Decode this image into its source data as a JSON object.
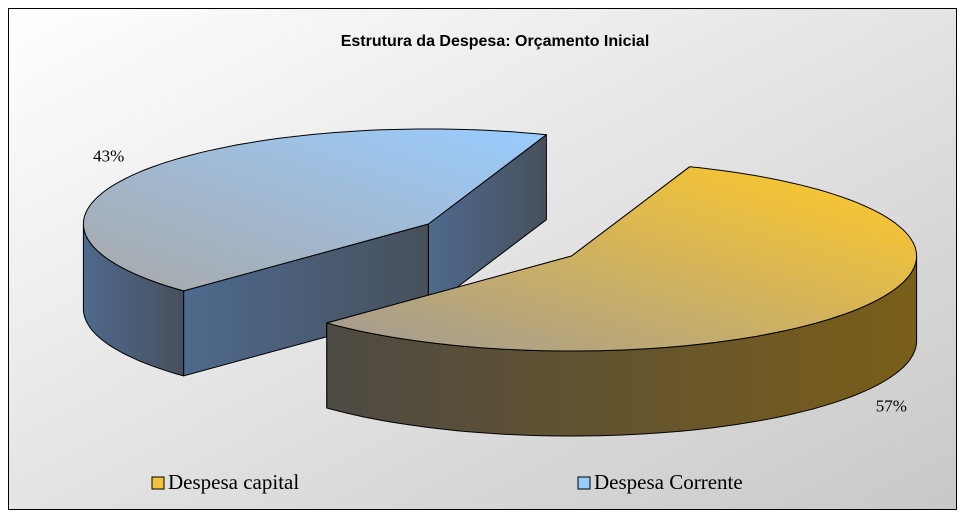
{
  "chart_data": {
    "type": "pie",
    "title": "Estrutura da Despesa: Orçamento Inicial",
    "categories": [
      "Despesa capital",
      "Despesa Corrente"
    ],
    "values": [
      57,
      43
    ],
    "value_labels": [
      "57%",
      "43%"
    ],
    "colors": [
      "#f5c23c",
      "#99ccff"
    ],
    "legend": "bottom",
    "three_d": true,
    "exploded": true
  }
}
